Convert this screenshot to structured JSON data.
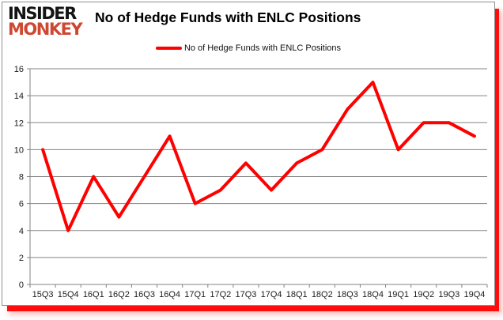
{
  "logo": {
    "line1": "INSIDER",
    "line2": "MONKEY"
  },
  "header": {
    "title": "No of Hedge Funds with ENLC Positions"
  },
  "legend": {
    "label": "No of Hedge Funds with ENLC Positions"
  },
  "colors": {
    "line": "#ff0000",
    "grid": "#838383",
    "axis_text": "#1a1a1a",
    "title_text": "#000000",
    "logo_primary": "#141414",
    "logo_accent": "#ce4731",
    "shadow": "#fe0d0d"
  },
  "chart_data": {
    "type": "line",
    "title": "No of Hedge Funds with ENLC Positions",
    "categories": [
      "15Q3",
      "15Q4",
      "16Q1",
      "16Q2",
      "16Q3",
      "16Q4",
      "17Q1",
      "17Q2",
      "17Q3",
      "17Q4",
      "18Q1",
      "18Q2",
      "18Q3",
      "18Q4",
      "19Q1",
      "19Q2",
      "19Q3",
      "19Q4"
    ],
    "series": [
      {
        "name": "No of Hedge Funds with ENLC Positions",
        "values": [
          10,
          4,
          8,
          5,
          8,
          11,
          6,
          7,
          9,
          7,
          9,
          10,
          13,
          15,
          10,
          12,
          12,
          11
        ]
      }
    ],
    "xlabel": "",
    "ylabel": "",
    "ylim": [
      0,
      16
    ],
    "yticks": [
      0,
      2,
      4,
      6,
      8,
      10,
      12,
      14,
      16
    ],
    "grid": true,
    "legend_position": "top-center"
  }
}
